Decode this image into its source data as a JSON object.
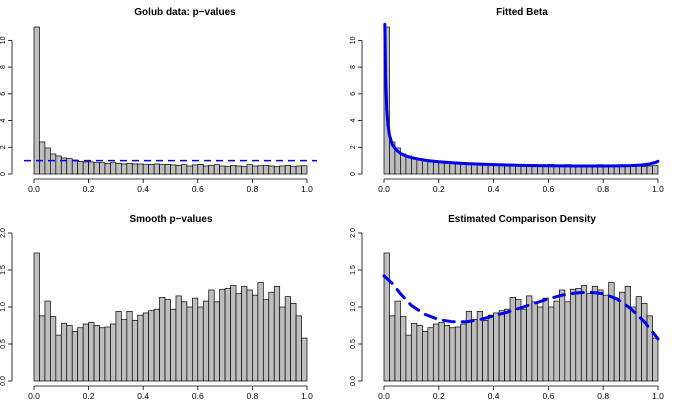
{
  "colors": {
    "bar_fill": "#bebebe",
    "bar_stroke": "#000000",
    "overlay": "#0000ee"
  },
  "chart_data": [
    {
      "type": "bar",
      "title": "Golub data: p−values",
      "xlim": [
        0,
        1.0
      ],
      "ylim": [
        0,
        11
      ],
      "xticks": [
        "0.0",
        "0.2",
        "0.4",
        "0.6",
        "0.8",
        "1.0"
      ],
      "yticks": [
        "0",
        "2",
        "4",
        "6",
        "8",
        "10"
      ],
      "bin_width": 0.02,
      "values": [
        11.0,
        2.4,
        1.95,
        1.5,
        1.35,
        1.2,
        1.15,
        1.05,
        0.95,
        0.9,
        0.9,
        0.85,
        0.85,
        0.8,
        0.85,
        0.8,
        0.75,
        0.8,
        0.75,
        0.75,
        0.7,
        0.72,
        0.75,
        0.7,
        0.72,
        0.68,
        0.65,
        0.7,
        0.6,
        0.68,
        0.72,
        0.6,
        0.65,
        0.7,
        0.6,
        0.55,
        0.65,
        0.6,
        0.55,
        0.7,
        0.6,
        0.62,
        0.65,
        0.6,
        0.55,
        0.6,
        0.65,
        0.55,
        0.6,
        0.62
      ],
      "overlay": {
        "type": "hline",
        "y": 1.0,
        "style": "dashed"
      }
    },
    {
      "type": "bar",
      "title": "Fitted Beta",
      "xlim": [
        0,
        1.0
      ],
      "ylim": [
        0,
        11
      ],
      "xticks": [
        "0.0",
        "0.2",
        "0.4",
        "0.6",
        "0.8",
        "1.0"
      ],
      "yticks": [
        "0",
        "2",
        "4",
        "6",
        "8",
        "10"
      ],
      "bin_width": 0.02,
      "values": [
        11.0,
        2.4,
        1.95,
        1.5,
        1.35,
        1.2,
        1.15,
        1.05,
        0.95,
        0.9,
        0.9,
        0.85,
        0.85,
        0.8,
        0.85,
        0.8,
        0.75,
        0.8,
        0.75,
        0.75,
        0.7,
        0.72,
        0.75,
        0.7,
        0.72,
        0.68,
        0.65,
        0.7,
        0.6,
        0.68,
        0.72,
        0.6,
        0.65,
        0.7,
        0.6,
        0.55,
        0.65,
        0.6,
        0.55,
        0.7,
        0.6,
        0.62,
        0.65,
        0.6,
        0.55,
        0.6,
        0.65,
        0.55,
        0.6,
        0.62
      ],
      "overlay": {
        "type": "curve",
        "style": "solid",
        "x": [
          0.003,
          0.006,
          0.01,
          0.015,
          0.02,
          0.03,
          0.045,
          0.06,
          0.08,
          0.1,
          0.13,
          0.16,
          0.2,
          0.25,
          0.3,
          0.35,
          0.4,
          0.45,
          0.5,
          0.55,
          0.6,
          0.65,
          0.7,
          0.75,
          0.8,
          0.85,
          0.9,
          0.94,
          0.97,
          0.99,
          1.0
        ],
        "y": [
          11.2,
          7.2,
          4.8,
          3.6,
          2.9,
          2.2,
          1.8,
          1.55,
          1.35,
          1.22,
          1.1,
          1.0,
          0.92,
          0.84,
          0.78,
          0.74,
          0.7,
          0.67,
          0.65,
          0.63,
          0.62,
          0.61,
          0.6,
          0.6,
          0.6,
          0.61,
          0.63,
          0.67,
          0.75,
          0.86,
          0.95
        ]
      }
    },
    {
      "type": "bar",
      "title": "Smooth p−values",
      "xlim": [
        0,
        1.0
      ],
      "ylim": [
        0,
        2.0
      ],
      "xticks": [
        "0.0",
        "0.2",
        "0.4",
        "0.6",
        "0.8",
        "1.0"
      ],
      "yticks": [
        "0.0",
        "0.5",
        "1.0",
        "1.5",
        "2.0"
      ],
      "bin_width": 0.02,
      "values": [
        1.73,
        0.88,
        1.08,
        0.87,
        0.62,
        0.78,
        0.75,
        0.67,
        0.72,
        0.77,
        0.79,
        0.75,
        0.72,
        0.73,
        0.77,
        0.94,
        0.83,
        0.94,
        0.82,
        0.89,
        0.92,
        0.95,
        0.97,
        1.13,
        1.1,
        0.97,
        1.15,
        1.07,
        1.0,
        1.12,
        1.0,
        1.08,
        1.23,
        1.07,
        1.24,
        1.25,
        1.29,
        1.18,
        1.28,
        1.23,
        1.16,
        1.33,
        1.1,
        1.2,
        1.28,
        1.0,
        1.14,
        1.05,
        0.88,
        0.58
      ]
    },
    {
      "type": "bar",
      "title": "Estimated Comparison Density",
      "xlim": [
        0,
        1.0
      ],
      "ylim": [
        0,
        2.0
      ],
      "xticks": [
        "0.0",
        "0.2",
        "0.4",
        "0.6",
        "0.8",
        "1.0"
      ],
      "yticks": [
        "0.0",
        "0.5",
        "1.0",
        "1.5",
        "2.0"
      ],
      "bin_width": 0.02,
      "values": [
        1.73,
        0.88,
        1.08,
        0.87,
        0.62,
        0.78,
        0.75,
        0.67,
        0.72,
        0.77,
        0.79,
        0.75,
        0.72,
        0.73,
        0.77,
        0.94,
        0.83,
        0.94,
        0.82,
        0.89,
        0.92,
        0.95,
        0.97,
        1.13,
        1.1,
        0.97,
        1.15,
        1.07,
        1.0,
        1.12,
        1.0,
        1.08,
        1.23,
        1.07,
        1.24,
        1.25,
        1.29,
        1.18,
        1.28,
        1.23,
        1.16,
        1.33,
        1.1,
        1.2,
        1.28,
        1.0,
        1.14,
        1.05,
        0.88,
        0.58
      ],
      "overlay": {
        "type": "curve",
        "style": "dashed",
        "x": [
          0.0,
          0.03,
          0.06,
          0.1,
          0.15,
          0.2,
          0.25,
          0.3,
          0.35,
          0.4,
          0.45,
          0.5,
          0.55,
          0.6,
          0.65,
          0.7,
          0.75,
          0.8,
          0.85,
          0.9,
          0.95,
          1.0
        ],
        "y": [
          1.42,
          1.32,
          1.18,
          1.02,
          0.9,
          0.83,
          0.8,
          0.8,
          0.83,
          0.88,
          0.93,
          0.99,
          1.05,
          1.11,
          1.16,
          1.19,
          1.2,
          1.18,
          1.11,
          0.98,
          0.8,
          0.57
        ]
      }
    }
  ]
}
